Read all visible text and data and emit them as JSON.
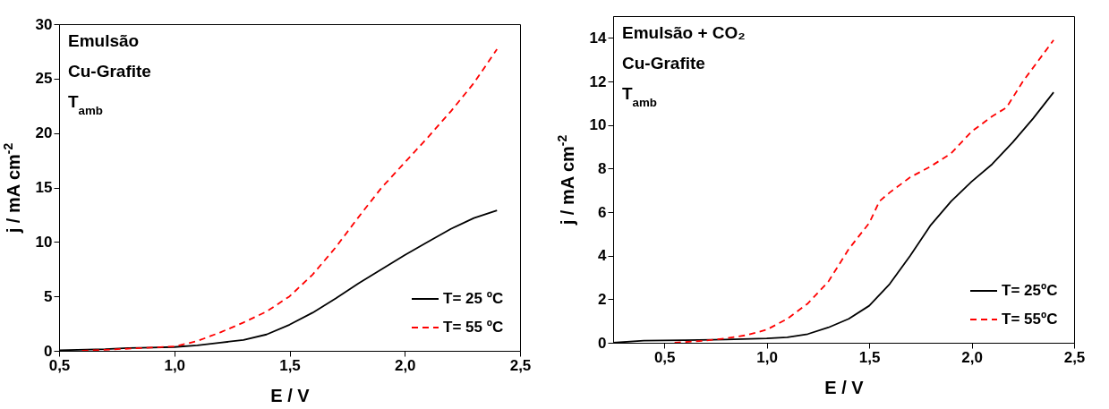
{
  "chart_data": [
    {
      "type": "line",
      "xlabel": "E / V",
      "ylabel": "j / mA cm$^{-2}$",
      "annotations": [
        "Emulsão",
        "Cu-Grafite",
        "T$_{amb}$"
      ],
      "legend": "bottom right",
      "grid": false,
      "xlim": [
        0.5,
        2.5
      ],
      "xticks": [
        {
          "value": 0.5,
          "label": "0,5"
        },
        {
          "value": 1.0,
          "label": "1,0"
        },
        {
          "value": 1.5,
          "label": "1,5"
        },
        {
          "value": 2.0,
          "label": "2,0"
        },
        {
          "value": 2.5,
          "label": "2,5"
        }
      ],
      "ylim": [
        0,
        30
      ],
      "yticks": [
        0,
        5,
        10,
        15,
        20,
        25,
        30
      ],
      "series": [
        {
          "name": "T= 25 ºC",
          "color": "#000000",
          "line_style": "solid",
          "x": [
            0.5,
            0.7,
            0.8,
            0.9,
            1.0,
            1.1,
            1.2,
            1.3,
            1.4,
            1.5,
            1.6,
            1.7,
            1.8,
            1.9,
            2.0,
            2.1,
            2.2,
            2.3,
            2.4
          ],
          "values": [
            0.05,
            0.15,
            0.25,
            0.3,
            0.35,
            0.5,
            0.75,
            1.0,
            1.5,
            2.4,
            3.5,
            4.8,
            6.2,
            7.5,
            8.8,
            10.0,
            11.2,
            12.2,
            12.9
          ]
        },
        {
          "name": "T= 55 ºC",
          "color": "#ff0000",
          "line_style": "dashed",
          "x": [
            0.6,
            0.7,
            0.8,
            0.9,
            1.0,
            1.1,
            1.2,
            1.3,
            1.4,
            1.5,
            1.6,
            1.7,
            1.8,
            1.9,
            2.0,
            2.1,
            2.2,
            2.3,
            2.4
          ],
          "values": [
            0.0,
            0.1,
            0.2,
            0.3,
            0.4,
            0.9,
            1.7,
            2.6,
            3.6,
            5.0,
            7.0,
            9.5,
            12.3,
            15.0,
            17.3,
            19.6,
            22.0,
            24.6,
            27.7
          ]
        }
      ]
    },
    {
      "type": "line",
      "xlabel": "E / V",
      "ylabel": "j / mA cm$^{-2}$",
      "annotations": [
        "Emulsão + CO₂",
        "Cu-Grafite",
        "T$_{amb}$"
      ],
      "legend": "bottom right",
      "grid": false,
      "xlim": [
        0.25,
        2.5
      ],
      "xticks": [
        {
          "value": 0.5,
          "label": "0,5"
        },
        {
          "value": 1.0,
          "label": "1,0"
        },
        {
          "value": 1.5,
          "label": "1,5"
        },
        {
          "value": 2.0,
          "label": "2,0"
        },
        {
          "value": 2.5,
          "label": "2,5"
        }
      ],
      "ylim": [
        0,
        15
      ],
      "yticks": [
        0,
        2,
        4,
        6,
        8,
        10,
        12,
        14
      ],
      "series": [
        {
          "name": "T= 25ºC",
          "color": "#000000",
          "line_style": "solid",
          "x": [
            0.25,
            0.4,
            0.6,
            0.8,
            1.0,
            1.1,
            1.2,
            1.3,
            1.4,
            1.5,
            1.6,
            1.7,
            1.8,
            1.9,
            2.0,
            2.1,
            2.2,
            2.3,
            2.4
          ],
          "values": [
            0.0,
            0.1,
            0.12,
            0.15,
            0.2,
            0.25,
            0.4,
            0.7,
            1.1,
            1.7,
            2.7,
            4.0,
            5.4,
            6.5,
            7.4,
            8.2,
            9.2,
            10.3,
            11.5
          ]
        },
        {
          "name": "T= 55ºC",
          "color": "#ff0000",
          "line_style": "dashed",
          "x": [
            0.55,
            0.7,
            0.8,
            0.9,
            1.0,
            1.1,
            1.2,
            1.3,
            1.4,
            1.5,
            1.55,
            1.6,
            1.7,
            1.8,
            1.9,
            2.0,
            2.1,
            2.17,
            2.25,
            2.4
          ],
          "values": [
            0.0,
            0.1,
            0.2,
            0.35,
            0.6,
            1.1,
            1.8,
            2.8,
            4.3,
            5.5,
            6.5,
            6.9,
            7.6,
            8.1,
            8.7,
            9.7,
            10.4,
            10.8,
            12.0,
            13.9
          ]
        }
      ]
    }
  ]
}
